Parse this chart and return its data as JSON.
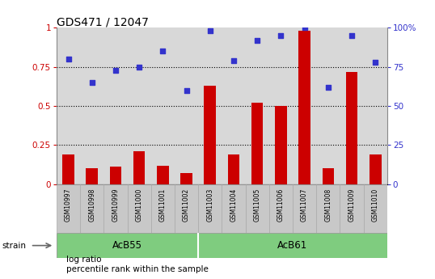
{
  "title": "GDS471 / 12047",
  "samples": [
    "GSM10997",
    "GSM10998",
    "GSM10999",
    "GSM11000",
    "GSM11001",
    "GSM11002",
    "GSM11003",
    "GSM11004",
    "GSM11005",
    "GSM11006",
    "GSM11007",
    "GSM11008",
    "GSM11009",
    "GSM11010"
  ],
  "log_ratio": [
    0.19,
    0.1,
    0.11,
    0.21,
    0.12,
    0.07,
    0.63,
    0.19,
    0.52,
    0.5,
    0.98,
    0.1,
    0.72,
    0.19
  ],
  "percentile_rank_pct": [
    80,
    65,
    73,
    75,
    85,
    60,
    98,
    79,
    92,
    95,
    100,
    62,
    95,
    78
  ],
  "groups": [
    {
      "label": "AcB55",
      "start": 0,
      "end": 5
    },
    {
      "label": "AcB61",
      "start": 6,
      "end": 13
    }
  ],
  "bar_color": "#cc0000",
  "dot_color": "#3333cc",
  "bg_color": "#d8d8d8",
  "label_bg_color": "#c8c8c8",
  "left_ylim": [
    0,
    1
  ],
  "right_ylim": [
    0,
    100
  ],
  "left_yticks": [
    0,
    0.25,
    0.5,
    0.75,
    1
  ],
  "right_yticks": [
    0,
    25,
    50,
    75,
    100
  ],
  "left_yticklabels": [
    "0",
    "0.25",
    "0.5",
    "0.75",
    "1"
  ],
  "right_yticklabels": [
    "0",
    "25",
    "50",
    "75",
    "100%"
  ],
  "legend_items": [
    "log ratio",
    "percentile rank within the sample"
  ],
  "strain_label": "strain",
  "dotted_lines": [
    0.25,
    0.5,
    0.75
  ],
  "green_color": "#7fcc7f",
  "white_color": "#ffffff"
}
